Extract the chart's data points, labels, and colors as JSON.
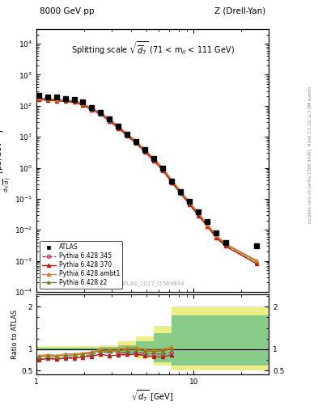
{
  "title_left": "8000 GeV pp",
  "title_right": "Z (Drell-Yan)",
  "main_title": "Splitting scale $\\sqrt{\\overline{d}_7}$ (71 < m$_{ll}$ < 111 GeV)",
  "watermark": "ATLAS_2017_I1589844",
  "right_label_top": "Rivet 3.1.10; ≥ 2.9M events",
  "right_label_bot": "[arXiv:1306.3436]",
  "right_label_bot2": "mcplots.cern.ch",
  "xlabel": "sqrt{d_7} [GeV]",
  "ylabel_main": "d$\\sigma$\ndsqrt($\\overline{d}_7$) [pb,GeV$^{-1}$]",
  "ylabel_ratio": "Ratio to ATLAS",
  "xlim_lo": 1.0,
  "xlim_hi": 30.0,
  "ylim_main_lo": 0.0001,
  "ylim_main_hi": 30000.0,
  "ylim_ratio_lo": 0.4,
  "ylim_ratio_hi": 2.3,
  "atlas_x": [
    1.03,
    1.18,
    1.34,
    1.52,
    1.74,
    1.97,
    2.24,
    2.56,
    2.91,
    3.32,
    3.78,
    4.3,
    4.9,
    5.59,
    6.37,
    7.26,
    8.27,
    9.42,
    10.7,
    12.2,
    13.9,
    15.9,
    25.0
  ],
  "atlas_y": [
    210,
    195,
    190,
    175,
    165,
    130,
    90,
    60,
    38,
    22,
    12,
    7.0,
    3.8,
    2.0,
    1.0,
    0.38,
    0.17,
    0.082,
    0.038,
    0.018,
    0.008,
    0.004,
    0.003
  ],
  "py345_x": [
    1.03,
    1.18,
    1.34,
    1.52,
    1.74,
    1.97,
    2.24,
    2.56,
    2.91,
    3.32,
    3.78,
    4.3,
    4.9,
    5.59,
    6.37,
    7.26,
    8.27,
    9.42,
    10.7,
    12.2,
    13.9,
    15.9,
    25.0
  ],
  "py345_y": [
    160,
    155,
    148,
    142,
    135,
    110,
    78,
    56,
    35,
    20,
    11.2,
    6.5,
    3.4,
    1.78,
    0.88,
    0.35,
    0.155,
    0.068,
    0.031,
    0.013,
    0.006,
    0.003,
    0.00085
  ],
  "py370_x": [
    1.03,
    1.18,
    1.34,
    1.52,
    1.74,
    1.97,
    2.24,
    2.56,
    2.91,
    3.32,
    3.78,
    4.3,
    4.9,
    5.59,
    6.37,
    7.26,
    8.27,
    9.42,
    10.7,
    12.2,
    13.9,
    15.9,
    25.0
  ],
  "py370_y": [
    158,
    152,
    145,
    138,
    130,
    106,
    75,
    53,
    32,
    19,
    10.5,
    6.2,
    3.2,
    1.65,
    0.82,
    0.33,
    0.147,
    0.065,
    0.029,
    0.013,
    0.0056,
    0.003,
    0.00082
  ],
  "pyambt1_x": [
    1.03,
    1.18,
    1.34,
    1.52,
    1.74,
    1.97,
    2.24,
    2.56,
    2.91,
    3.32,
    3.78,
    4.3,
    4.9,
    5.59,
    6.37,
    7.26,
    8.27,
    9.42,
    10.7,
    12.2,
    13.9,
    15.9,
    25.0
  ],
  "pyambt1_y": [
    178,
    170,
    162,
    156,
    147,
    118,
    84,
    60,
    38,
    22,
    12.5,
    7.3,
    3.8,
    2.0,
    1.0,
    0.4,
    0.177,
    0.078,
    0.036,
    0.015,
    0.0068,
    0.0036,
    0.00105
  ],
  "pyz2_x": [
    1.03,
    1.18,
    1.34,
    1.52,
    1.74,
    1.97,
    2.24,
    2.56,
    2.91,
    3.32,
    3.78,
    4.3,
    4.9,
    5.59,
    6.37,
    7.26,
    8.27,
    9.42,
    10.7,
    12.2,
    13.9,
    15.9,
    25.0
  ],
  "pyz2_y": [
    172,
    165,
    158,
    150,
    142,
    115,
    82,
    58,
    36.5,
    21,
    12.0,
    7.0,
    3.65,
    1.9,
    0.96,
    0.385,
    0.17,
    0.075,
    0.034,
    0.0145,
    0.0065,
    0.0034,
    0.00098
  ],
  "ratio_py345_x": [
    1.03,
    1.18,
    1.34,
    1.52,
    1.74,
    1.97,
    2.24,
    2.56,
    2.91,
    3.32,
    3.78,
    4.3,
    4.9,
    5.59,
    6.37,
    7.26
  ],
  "ratio_py345_y": [
    0.762,
    0.795,
    0.779,
    0.811,
    0.818,
    0.846,
    0.867,
    0.933,
    0.921,
    0.909,
    0.933,
    0.929,
    0.895,
    0.89,
    0.88,
    0.921
  ],
  "ratio_py370_x": [
    1.03,
    1.18,
    1.34,
    1.52,
    1.74,
    1.97,
    2.24,
    2.56,
    2.91,
    3.32,
    3.78,
    4.3,
    4.9,
    5.59,
    6.37,
    7.26
  ],
  "ratio_py370_y": [
    0.752,
    0.779,
    0.763,
    0.789,
    0.788,
    0.815,
    0.833,
    0.883,
    0.842,
    0.864,
    0.875,
    0.886,
    0.842,
    0.825,
    0.82,
    0.868
  ],
  "ratio_pyambt1_x": [
    1.03,
    1.18,
    1.34,
    1.52,
    1.74,
    1.97,
    2.24,
    2.56,
    2.91,
    3.32,
    3.78,
    4.3,
    4.9,
    5.59,
    6.37,
    7.26
  ],
  "ratio_pyambt1_y": [
    0.848,
    0.872,
    0.853,
    0.891,
    0.891,
    0.908,
    0.933,
    1.0,
    1.0,
    1.0,
    1.042,
    1.043,
    1.0,
    1.0,
    1.0,
    1.053
  ],
  "ratio_pyz2_x": [
    1.03,
    1.18,
    1.34,
    1.52,
    1.74,
    1.97,
    2.24,
    2.56,
    2.91,
    3.32,
    3.78,
    4.3,
    4.9,
    5.59,
    6.37,
    7.26
  ],
  "ratio_pyz2_y": [
    0.819,
    0.846,
    0.832,
    0.857,
    0.861,
    0.885,
    0.911,
    0.967,
    0.961,
    0.955,
    1.0,
    1.0,
    0.961,
    0.95,
    0.96,
    1.013
  ],
  "band_yellow_edges": [
    1.0,
    2.0,
    2.56,
    3.32,
    4.3,
    5.59,
    7.26,
    30.0
  ],
  "band_yellow_lo": [
    0.965,
    0.965,
    0.92,
    0.85,
    0.78,
    0.62,
    0.5,
    0.5
  ],
  "band_yellow_hi": [
    1.07,
    1.07,
    1.1,
    1.18,
    1.3,
    1.55,
    2.0,
    2.0
  ],
  "band_green_edges": [
    1.0,
    2.0,
    2.56,
    3.32,
    4.3,
    5.59,
    7.26,
    30.0
  ],
  "band_green_lo": [
    0.978,
    0.978,
    0.945,
    0.89,
    0.84,
    0.7,
    0.62,
    0.62
  ],
  "band_green_hi": [
    1.035,
    1.035,
    1.055,
    1.1,
    1.18,
    1.38,
    1.8,
    1.8
  ],
  "color_py345": "#c0306a",
  "color_py370": "#b02020",
  "color_pyambt1": "#e08020",
  "color_pyz2": "#808020",
  "color_atlas": "black",
  "color_yellow_band": "#eeee88",
  "color_green_band": "#88cc88"
}
